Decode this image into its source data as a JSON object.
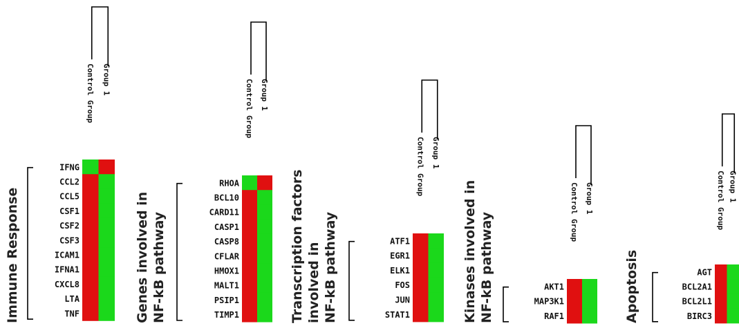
{
  "colors": {
    "up": "#e01010",
    "down": "#1bd81b"
  },
  "columns": [
    "Control Group",
    "Group 1"
  ],
  "panels": [
    {
      "category_lines": [
        "Immune Response"
      ],
      "genes": [
        "IFNG",
        "CCL2",
        "CCL5",
        "CSF1",
        "CSF2",
        "CSF3",
        "ICAM1",
        "IFNA1",
        "CXCL8",
        "LTA",
        "TNF"
      ],
      "cells": [
        [
          "green",
          "red"
        ],
        [
          "red",
          "green"
        ],
        [
          "red",
          "green"
        ],
        [
          "red",
          "green"
        ],
        [
          "red",
          "green"
        ],
        [
          "red",
          "green"
        ],
        [
          "red",
          "green"
        ],
        [
          "red",
          "green"
        ],
        [
          "red",
          "green"
        ],
        [
          "red",
          "green"
        ],
        [
          "red",
          "green"
        ]
      ]
    },
    {
      "category_lines": [
        "Genes involved in",
        "NF-kB  pathway"
      ],
      "genes": [
        "RHOA",
        "BCL10",
        "CARD11",
        "CASP1",
        "CASP8",
        "CFLAR",
        "HMOX1",
        "MALT1",
        "PSIP1",
        "TIMP1"
      ],
      "cells": [
        [
          "green",
          "red"
        ],
        [
          "red",
          "green"
        ],
        [
          "red",
          "green"
        ],
        [
          "red",
          "green"
        ],
        [
          "red",
          "green"
        ],
        [
          "red",
          "green"
        ],
        [
          "red",
          "green"
        ],
        [
          "red",
          "green"
        ],
        [
          "red",
          "green"
        ],
        [
          "red",
          "green"
        ]
      ]
    },
    {
      "category_lines": [
        "Transcription  factors",
        "involved in",
        "NF-kB  pathway"
      ],
      "genes": [
        "ATF1",
        "EGR1",
        "ELK1",
        "FOS",
        "JUN",
        "STAT1"
      ],
      "cells": [
        [
          "red",
          "green"
        ],
        [
          "red",
          "green"
        ],
        [
          "red",
          "green"
        ],
        [
          "red",
          "green"
        ],
        [
          "red",
          "green"
        ],
        [
          "red",
          "green"
        ]
      ]
    },
    {
      "category_lines": [
        "Kinases involved in",
        "NF-kB  pathway"
      ],
      "genes": [
        "AKT1",
        "MAP3K1",
        "RAF1"
      ],
      "cells": [
        [
          "red",
          "green"
        ],
        [
          "red",
          "green"
        ],
        [
          "red",
          "green"
        ]
      ]
    },
    {
      "category_lines": [
        "Apoptosis"
      ],
      "genes": [
        "AGT",
        "BCL2A1",
        "BCL2L1",
        "BIRC3"
      ],
      "cells": [
        [
          "red",
          "green"
        ],
        [
          "red",
          "green"
        ],
        [
          "red",
          "green"
        ],
        [
          "red",
          "green"
        ]
      ]
    }
  ]
}
